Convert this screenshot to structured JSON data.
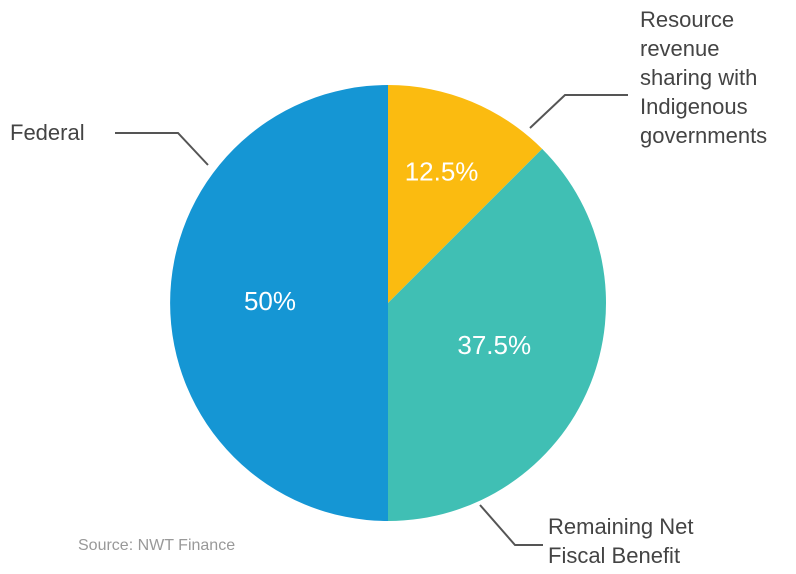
{
  "chart_data": {
    "type": "pie",
    "categories": [
      "Resource revenue sharing with Indigenous governments",
      "Remaining Net Fiscal Benefit",
      "Federal"
    ],
    "values": [
      12.5,
      37.5,
      50
    ],
    "value_labels": [
      "12.5%",
      "37.5%",
      "50%"
    ],
    "colors": [
      "#fbbb10",
      "#40bfb4",
      "#1596d4"
    ],
    "source": "Source: NWT Finance"
  }
}
